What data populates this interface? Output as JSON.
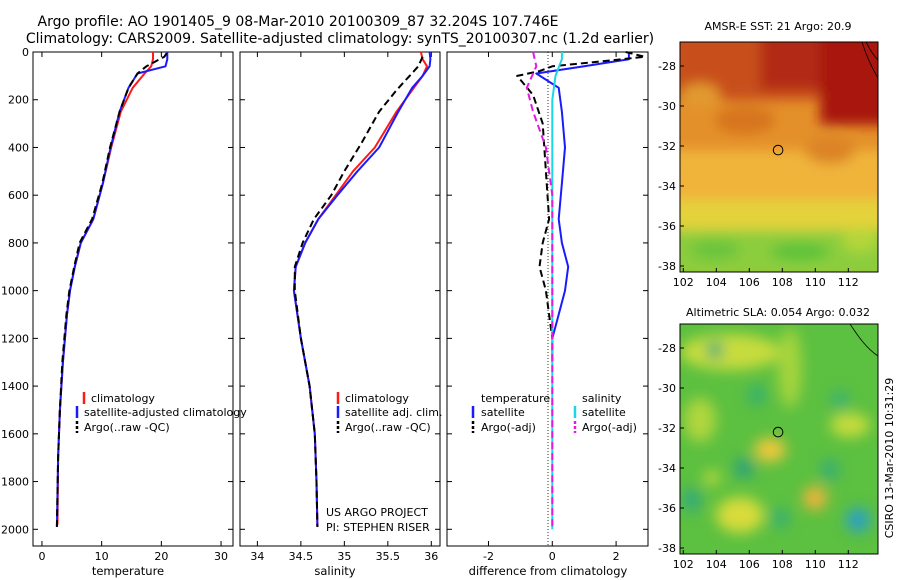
{
  "header": {
    "line1": "Argo profile: AO 1901405_9 08-Mar-2010 20100309_87 32.204S 107.746E",
    "line2": "Climatology: CARS2009. Satellite-adjusted climatology: synTS_20100307.nc (1.2d earlier)"
  },
  "side_text": "CSIRO 13-Mar-2010 10:31:29",
  "colors": {
    "climatology": "#ff1a1a",
    "satellite": "#1a1aff",
    "argo": "#000000",
    "satellite_cyan": "#1ad7e6",
    "argo_adj": "#e21ae2"
  },
  "chart_data": [
    {
      "type": "line",
      "xlabel": "temperature",
      "ylabel": "",
      "xlim": [
        -1.5,
        32
      ],
      "ylim": [
        2070,
        0
      ],
      "xticks": [
        "0",
        "10",
        "20",
        "30"
      ],
      "yticks": [
        "0",
        "200",
        "400",
        "600",
        "800",
        "1000",
        "1200",
        "1400",
        "1600",
        "1800",
        "2000"
      ],
      "legend": [
        "climatology",
        "satellite-adjusted climatology",
        "Argo(..raw -QC)"
      ],
      "series": [
        {
          "name": "climatology",
          "style": "solid",
          "color": "#ff1a1a",
          "x": [
            18.6,
            18.6,
            18.3,
            17.2,
            15.2,
            13.2,
            11.6,
            10.2,
            8.6,
            6.5,
            5.5,
            4.7,
            4.2,
            3.5,
            3.0,
            2.7,
            2.6
          ],
          "y": [
            0,
            30,
            60,
            90,
            150,
            250,
            400,
            550,
            700,
            800,
            900,
            1000,
            1100,
            1300,
            1500,
            1700,
            1980
          ]
        },
        {
          "name": "satellite-adjusted climatology",
          "style": "solid",
          "color": "#1a1aff",
          "x": [
            21.0,
            21.0,
            20.7,
            16.0,
            14.5,
            13.0,
            11.5,
            10.2,
            8.6,
            6.5,
            5.5,
            4.7,
            4.2,
            3.5,
            3.0,
            2.7,
            2.5
          ],
          "y": [
            0,
            30,
            60,
            90,
            150,
            250,
            400,
            550,
            700,
            800,
            900,
            1000,
            1100,
            1300,
            1500,
            1700,
            1990
          ]
        },
        {
          "name": "Argo(..raw -QC)",
          "style": "dashed",
          "color": "#000000",
          "x": [
            20.9,
            20.5,
            19.0,
            17.5,
            16.0,
            14.5,
            13.0,
            11.4,
            10.1,
            8.4,
            6.3,
            5.4,
            4.6,
            4.1,
            3.4,
            3.0,
            2.7,
            2.5
          ],
          "y": [
            5,
            20,
            40,
            60,
            90,
            150,
            250,
            400,
            550,
            700,
            800,
            900,
            1000,
            1100,
            1300,
            1500,
            1700,
            1990
          ]
        }
      ]
    },
    {
      "type": "line",
      "xlabel": "salinity",
      "ylabel": "",
      "xlim": [
        33.8,
        36.1
      ],
      "ylim": [
        2070,
        0
      ],
      "xticks": [
        "34",
        "34.5",
        "35",
        "35.5",
        "36"
      ],
      "legend": [
        "climatology",
        "satellite adj. clim.",
        "Argo(..raw -QC)"
      ],
      "annotations": [
        "US ARGO PROJECT",
        "PI: STEPHEN RISER"
      ],
      "series": [
        {
          "name": "climatology",
          "style": "solid",
          "color": "#ff1a1a",
          "x": [
            35.88,
            35.9,
            35.95,
            35.9,
            35.8,
            35.6,
            35.35,
            35.1,
            34.9,
            34.7,
            34.55,
            34.44,
            34.42,
            34.5,
            34.6,
            34.66,
            34.68,
            34.69
          ],
          "y": [
            0,
            30,
            60,
            100,
            150,
            250,
            400,
            500,
            600,
            700,
            800,
            900,
            1000,
            1200,
            1400,
            1600,
            1800,
            1990
          ]
        },
        {
          "name": "satellite adj. clim.",
          "style": "solid",
          "color": "#1a1aff",
          "x": [
            35.98,
            35.99,
            35.98,
            35.9,
            35.78,
            35.62,
            35.4,
            35.15,
            34.92,
            34.7,
            34.55,
            34.44,
            34.42,
            34.5,
            34.6,
            34.66,
            34.68,
            34.69
          ],
          "y": [
            0,
            30,
            60,
            100,
            150,
            250,
            400,
            500,
            600,
            700,
            800,
            900,
            1000,
            1200,
            1400,
            1600,
            1800,
            1990
          ]
        },
        {
          "name": "Argo(..raw -QC)",
          "style": "dashed",
          "color": "#000000",
          "x": [
            35.9,
            35.85,
            35.75,
            35.7,
            35.6,
            35.4,
            35.2,
            35.0,
            34.85,
            34.65,
            34.52,
            34.43,
            34.43,
            34.5,
            34.6,
            34.66,
            34.68,
            34.69
          ],
          "y": [
            20,
            60,
            100,
            120,
            160,
            250,
            380,
            500,
            600,
            700,
            800,
            900,
            1000,
            1200,
            1400,
            1600,
            1800,
            1990
          ]
        }
      ]
    },
    {
      "type": "line",
      "xlabel": "difference from climatology",
      "ylabel": "",
      "xlim": [
        -3.3,
        3.0
      ],
      "ylim": [
        2070,
        0
      ],
      "xticks": [
        "-2",
        "0",
        "2"
      ],
      "legend": [
        "temperature",
        "satellite",
        "Argo(-adj)",
        "salinity",
        "satellite",
        "Argo(-adj)"
      ],
      "series": [
        {
          "name": "temperature satellite",
          "style": "solid",
          "color": "#1a1aff",
          "x": [
            2.4,
            2.4,
            1.0,
            -0.5,
            0.2,
            0.3,
            0.4,
            0.3,
            0.2,
            0.3,
            0.5,
            0.4,
            0.2,
            0.0,
            0.0
          ],
          "y": [
            0,
            30,
            60,
            90,
            150,
            250,
            400,
            550,
            700,
            800,
            900,
            1000,
            1100,
            1200,
            1300
          ]
        },
        {
          "name": "temperature Argo(-adj)",
          "style": "dashed",
          "color": "#000000",
          "x": [
            2.3,
            2.9,
            1.5,
            0.0,
            -0.4,
            -1.1,
            -0.6,
            -0.3,
            -0.2,
            -0.1,
            -0.3,
            -0.4,
            -0.2,
            -0.1,
            0.0
          ],
          "y": [
            0,
            20,
            40,
            60,
            80,
            100,
            180,
            300,
            500,
            700,
            800,
            900,
            1000,
            1100,
            1200
          ]
        },
        {
          "name": "salinity satellite",
          "style": "solid",
          "color": "#1ad7e6",
          "x": [
            0.3,
            0.3,
            0.1,
            0.0,
            0.0,
            0.0,
            0.0,
            0.0,
            0.0,
            0.0
          ],
          "y": [
            0,
            30,
            100,
            200,
            400,
            600,
            800,
            1000,
            1500,
            2000
          ]
        },
        {
          "name": "salinity Argo(-adj)",
          "style": "dashed",
          "color": "#e21ae2",
          "x": [
            -0.6,
            -0.5,
            -0.8,
            -0.6,
            -0.2,
            0.0,
            0.0,
            0.0,
            0.0,
            0.0
          ],
          "y": [
            0,
            60,
            150,
            250,
            400,
            600,
            800,
            1000,
            1500,
            2000
          ]
        }
      ]
    },
    {
      "type": "heatmap",
      "title": "AMSR-E SST: 21 Argo: 20.9",
      "xticks": [
        "102",
        "104",
        "106",
        "108",
        "110",
        "112"
      ],
      "yticks": [
        "-28",
        "-30",
        "-32",
        "-34",
        "-36",
        "-38"
      ],
      "xlim": [
        101.8,
        113.8
      ],
      "ylim": [
        -38.3,
        -26.8
      ],
      "marker": {
        "lon": 107.746,
        "lat": -32.204
      }
    },
    {
      "type": "heatmap",
      "title": "Altimetric SLA: 0.054 Argo: 0.032",
      "xticks": [
        "102",
        "104",
        "106",
        "108",
        "110",
        "112"
      ],
      "yticks": [
        "-28",
        "-30",
        "-32",
        "-34",
        "-36",
        "-38"
      ],
      "xlim": [
        101.8,
        113.8
      ],
      "ylim": [
        -38.3,
        -26.8
      ],
      "marker": {
        "lon": 107.746,
        "lat": -32.204
      }
    }
  ]
}
